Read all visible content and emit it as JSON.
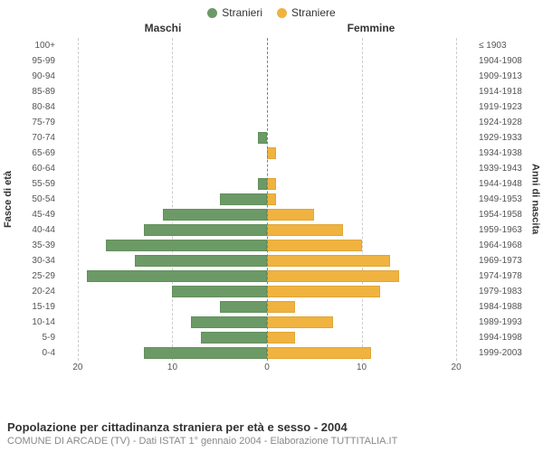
{
  "legend": {
    "male": "Stranieri",
    "female": "Straniere"
  },
  "columns": {
    "male": "Maschi",
    "female": "Femmine"
  },
  "axes": {
    "left_label": "Fasce di età",
    "right_label": "Anni di nascita",
    "x_ticks": [
      20,
      10,
      0,
      10,
      20
    ],
    "x_max": 22
  },
  "colors": {
    "male": "#6c9a66",
    "female": "#f0b33f",
    "grid": "#dddddd",
    "center": "#888844",
    "bg": "#ffffff"
  },
  "caption": {
    "line1": "Popolazione per cittadinanza straniera per età e sesso - 2004",
    "line2": "COMUNE DI ARCADE (TV) - Dati ISTAT 1° gennaio 2004 - Elaborazione TUTTITALIA.IT"
  },
  "rows": [
    {
      "age": "100+",
      "years": "≤ 1903",
      "m": 0,
      "f": 0
    },
    {
      "age": "95-99",
      "years": "1904-1908",
      "m": 0,
      "f": 0
    },
    {
      "age": "90-94",
      "years": "1909-1913",
      "m": 0,
      "f": 0
    },
    {
      "age": "85-89",
      "years": "1914-1918",
      "m": 0,
      "f": 0
    },
    {
      "age": "80-84",
      "years": "1919-1923",
      "m": 0,
      "f": 0
    },
    {
      "age": "75-79",
      "years": "1924-1928",
      "m": 0,
      "f": 0
    },
    {
      "age": "70-74",
      "years": "1929-1933",
      "m": 1,
      "f": 0
    },
    {
      "age": "65-69",
      "years": "1934-1938",
      "m": 0,
      "f": 1
    },
    {
      "age": "60-64",
      "years": "1939-1943",
      "m": 0,
      "f": 0
    },
    {
      "age": "55-59",
      "years": "1944-1948",
      "m": 1,
      "f": 1
    },
    {
      "age": "50-54",
      "years": "1949-1953",
      "m": 5,
      "f": 1
    },
    {
      "age": "45-49",
      "years": "1954-1958",
      "m": 11,
      "f": 5
    },
    {
      "age": "40-44",
      "years": "1959-1963",
      "m": 13,
      "f": 8
    },
    {
      "age": "35-39",
      "years": "1964-1968",
      "m": 17,
      "f": 10
    },
    {
      "age": "30-34",
      "years": "1969-1973",
      "m": 14,
      "f": 13
    },
    {
      "age": "25-29",
      "years": "1974-1978",
      "m": 19,
      "f": 14
    },
    {
      "age": "20-24",
      "years": "1979-1983",
      "m": 10,
      "f": 12
    },
    {
      "age": "15-19",
      "years": "1984-1988",
      "m": 5,
      "f": 3
    },
    {
      "age": "10-14",
      "years": "1989-1993",
      "m": 8,
      "f": 7
    },
    {
      "age": "5-9",
      "years": "1994-1998",
      "m": 7,
      "f": 3
    },
    {
      "age": "0-4",
      "years": "1999-2003",
      "m": 13,
      "f": 11
    }
  ]
}
